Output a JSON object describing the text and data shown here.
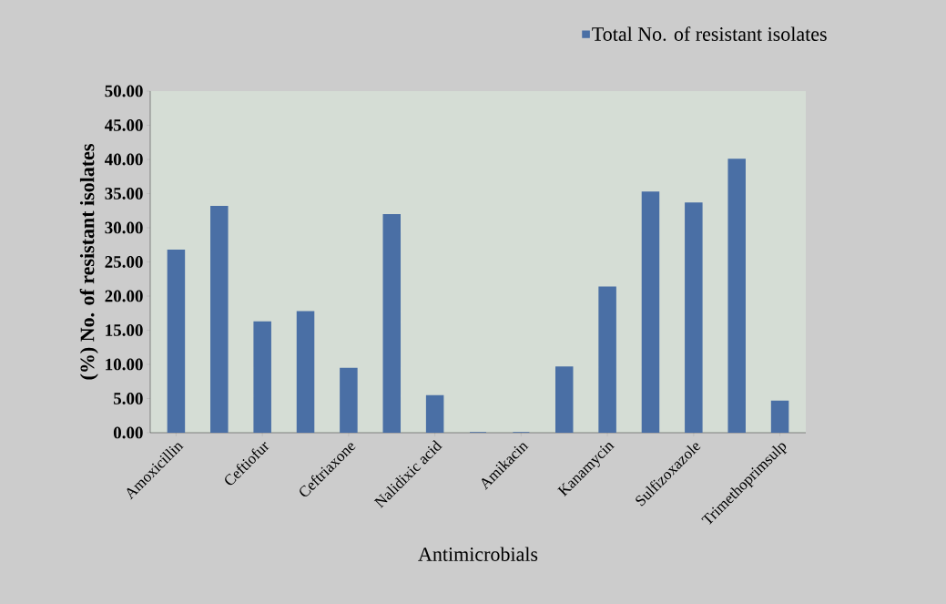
{
  "chart_data": {
    "type": "bar",
    "xlabel": "Antimicrobials",
    "ylabel": "(%) No. of resistant isolates",
    "categories": [
      "Amoxicillin",
      null,
      "Ceftiofur",
      null,
      "Ceftriaxone",
      null,
      "Nalidixic acid",
      null,
      "Amikacin",
      null,
      "Kanamycin",
      null,
      "Sulfizoxazole",
      null,
      "Trimethoprimsulp"
    ],
    "series": [
      {
        "name": "Total  No. of resistant isolates",
        "color": "#4a6fa5",
        "values": [
          26.7,
          33.1,
          16.2,
          17.7,
          9.4,
          31.9,
          5.4,
          0,
          0,
          9.6,
          21.3,
          35.2,
          33.6,
          40,
          4.6
        ]
      }
    ],
    "ylim": [
      0,
      50
    ],
    "yticks": [
      {
        "value": 0,
        "label": "0.00"
      },
      {
        "value": 5,
        "label": "5.00"
      },
      {
        "value": 10,
        "label": "10.00"
      },
      {
        "value": 15,
        "label": "15.00"
      },
      {
        "value": 20,
        "label": "20.00"
      },
      {
        "value": 25,
        "label": "25.00"
      },
      {
        "value": 30,
        "label": "30.00"
      },
      {
        "value": 35,
        "label": "35.00"
      },
      {
        "value": 40,
        "label": "40.00"
      },
      {
        "value": 45,
        "label": "45.00"
      },
      {
        "value": 50,
        "label": "50.00"
      }
    ],
    "grid": false,
    "legend": "top right"
  }
}
